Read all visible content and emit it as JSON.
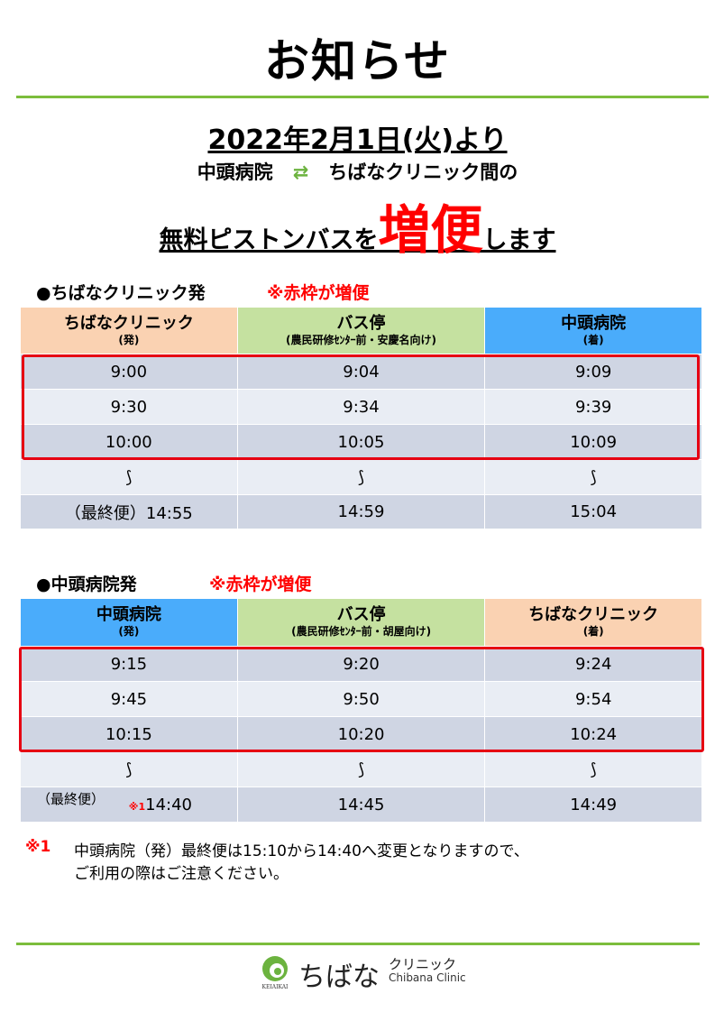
{
  "title": "お知らせ",
  "headline": {
    "date": "2022年2月1日(火)より",
    "route_from": "中頭病院",
    "route_arrow": "⇄",
    "route_to": "ちばなクリニック間の",
    "line3_pre": "無料ピストンバスを",
    "line3_emph": "増便",
    "line3_post": "します"
  },
  "section1": {
    "heading": "●ちばなクリニック発",
    "note": "※赤枠が増便",
    "headers": [
      {
        "name": "ちばなクリニック",
        "sub": "(発)",
        "color": "#fad2b2"
      },
      {
        "name": "バス停",
        "sub": "(農民研修ｾﾝﾀｰ前・安慶名向け)",
        "color": "#c5e1a0"
      },
      {
        "name": "中頭病院",
        "sub": "(着)",
        "color": "#4aacfb"
      }
    ],
    "rows": [
      [
        "9:00",
        "9:04",
        "9:09"
      ],
      [
        "9:30",
        "9:34",
        "9:39"
      ],
      [
        "10:00",
        "10:05",
        "10:09"
      ],
      [
        "⟆",
        "⟆",
        "⟆"
      ]
    ],
    "last": {
      "prefix": "（最終便）",
      "times": [
        "14:55",
        "14:59",
        "15:04"
      ]
    }
  },
  "section2": {
    "heading": "●中頭病院発",
    "note": "※赤枠が増便",
    "headers": [
      {
        "name": "中頭病院",
        "sub": "(発)",
        "color": "#4aacfb"
      },
      {
        "name": "バス停",
        "sub": "(農民研修ｾﾝﾀｰ前・胡屋向け)",
        "color": "#c5e1a0"
      },
      {
        "name": "ちばなクリニック",
        "sub": "(着)",
        "color": "#fad2b2"
      }
    ],
    "rows": [
      [
        "9:15",
        "9:20",
        "9:24"
      ],
      [
        "9:45",
        "9:50",
        "9:54"
      ],
      [
        "10:15",
        "10:20",
        "10:24"
      ],
      [
        "⟆",
        "⟆",
        "⟆"
      ]
    ],
    "last": {
      "prefix": "（最終便）",
      "mark": "※1",
      "times": [
        "14:40",
        "14:45",
        "14:49"
      ]
    }
  },
  "footnote": {
    "mark": "※1",
    "line1": "中頭病院（発）最終便は15:10から14:40へ変更となりますので、",
    "line2": "ご利用の際はご注意ください。"
  },
  "logo": {
    "name": "ちばな",
    "kana": "クリニック",
    "en": "Chibana Clinic",
    "org": "KEIAIKAI"
  }
}
